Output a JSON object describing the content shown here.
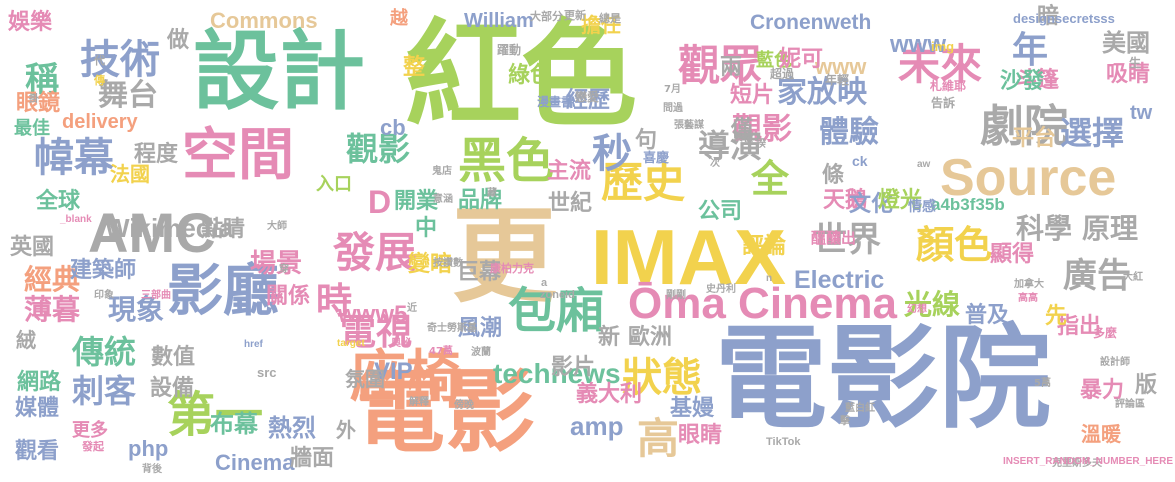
{
  "palette": {
    "pink": "#e58bb5",
    "green": "#6cc19c",
    "lime": "#a7d25c",
    "gray": "#a9a9a9",
    "slate": "#8da0cb",
    "orange": "#f4a07e",
    "tan": "#e6c898",
    "yellow": "#f2d24d",
    "pink_light": "#f6b7cf"
  },
  "words": [
    {
      "text": "電影院",
      "color": "#8da0cb"
    },
    {
      "text": "紅色",
      "color": "#a7d25c"
    },
    {
      "text": "設計",
      "color": "#6cc19c"
    },
    {
      "text": "電影",
      "color": "#f4a07e"
    },
    {
      "text": "更",
      "color": "#e6c898"
    },
    {
      "text": "IMAX",
      "color": "#f2d24d"
    },
    {
      "text": "AMC",
      "color": "#a9a9a9"
    },
    {
      "text": "座椅",
      "color": "#f4a07e"
    },
    {
      "text": "空間",
      "color": "#e58bb5"
    },
    {
      "text": "影廳",
      "color": "#8da0cb"
    },
    {
      "text": "Source",
      "color": "#e6c898"
    },
    {
      "text": "Ōma Cinema",
      "color": "#e58bb5"
    },
    {
      "text": "黑色",
      "color": "#a7d25c"
    },
    {
      "text": "包廂",
      "color": "#6cc19c"
    },
    {
      "text": "劇院",
      "color": "#a9a9a9"
    },
    {
      "text": "未來",
      "color": "#e58bb5"
    },
    {
      "text": "觀眾",
      "color": "#e58bb5"
    },
    {
      "text": "第一",
      "color": "#a7d25c"
    },
    {
      "text": "歷史",
      "color": "#f2d24d"
    },
    {
      "text": "發展",
      "color": "#e58bb5"
    },
    {
      "text": "技術",
      "color": "#8da0cb"
    },
    {
      "text": "幃幕",
      "color": "#8da0cb"
    },
    {
      "text": "狀態",
      "color": "#f2d24d"
    },
    {
      "text": "高",
      "color": "#e6c898"
    },
    {
      "text": "觀影",
      "color": "#6cc19c"
    },
    {
      "text": "觀影",
      "color": "#e58bb5"
    },
    {
      "text": "體驗",
      "color": "#8da0cb"
    },
    {
      "text": "選擇",
      "color": "#8da0cb"
    },
    {
      "text": "顏色",
      "color": "#f2d24d"
    },
    {
      "text": "廣告",
      "color": "#a9a9a9"
    },
    {
      "text": "世界",
      "color": "#a9a9a9"
    },
    {
      "text": "導演",
      "color": "#a9a9a9"
    },
    {
      "text": "全",
      "color": "#a7d25c"
    },
    {
      "text": "秒",
      "color": "#8da0cb"
    },
    {
      "text": "年",
      "color": "#8da0cb"
    },
    {
      "text": "家放映",
      "color": "#8da0cb"
    },
    {
      "text": "舞台",
      "color": "#a9a9a9"
    },
    {
      "text": "電視",
      "color": "#e58bb5"
    },
    {
      "text": "時",
      "color": "#e58bb5"
    },
    {
      "text": "傳統",
      "color": "#6cc19c"
    },
    {
      "text": "刺客",
      "color": "#8da0cb"
    },
    {
      "text": "經典",
      "color": "#f4a07e"
    },
    {
      "text": "光線",
      "color": "#a7d25c"
    },
    {
      "text": "稱",
      "color": "#6cc19c"
    },
    {
      "text": "D",
      "color": "#e58bb5"
    },
    {
      "text": "Wikimedia",
      "color": "#a9a9a9"
    },
    {
      "text": "Commons",
      "color": "#e6c898"
    },
    {
      "text": "Cronenweth",
      "color": "#8da0cb"
    },
    {
      "text": "technews",
      "color": "#6cc19c"
    },
    {
      "text": "Electric",
      "color": "#8da0cb"
    },
    {
      "text": "Cinema",
      "color": "#8da0cb"
    },
    {
      "text": "delivery",
      "color": "#f4a07e"
    },
    {
      "text": "William",
      "color": "#8da0cb"
    },
    {
      "text": "www5",
      "color": "#e58bb5"
    },
    {
      "text": "www",
      "color": "#8da0cb"
    },
    {
      "text": "www",
      "color": "#e6c898"
    },
    {
      "text": "VIP",
      "color": "#8da0cb"
    },
    {
      "text": "amp",
      "color": "#8da0cb"
    },
    {
      "text": "php",
      "color": "#8da0cb"
    },
    {
      "text": "tw",
      "color": "#8da0cb"
    },
    {
      "text": "cb",
      "color": "#8da0cb"
    },
    {
      "text": "a4b3f35b",
      "color": "#6cc19c"
    },
    {
      "text": "科學",
      "color": "#a9a9a9"
    },
    {
      "text": "原理",
      "color": "#a9a9a9"
    },
    {
      "text": "美國",
      "color": "#a9a9a9"
    },
    {
      "text": "英國",
      "color": "#a9a9a9"
    },
    {
      "text": "現象",
      "color": "#8da0cb"
    },
    {
      "text": "薄暮",
      "color": "#e58bb5"
    },
    {
      "text": "場景",
      "color": "#e58bb5"
    },
    {
      "text": "關係",
      "color": "#e58bb5"
    },
    {
      "text": "建築師",
      "color": "#8da0cb"
    },
    {
      "text": "點睛",
      "color": "#a9a9a9"
    },
    {
      "text": "布幕",
      "color": "#6cc19c"
    },
    {
      "text": "熱烈",
      "color": "#8da0cb"
    },
    {
      "text": "設備",
      "color": "#a9a9a9"
    },
    {
      "text": "數值",
      "color": "#a9a9a9"
    },
    {
      "text": "網路",
      "color": "#6cc19c"
    },
    {
      "text": "媒體",
      "color": "#8da0cb"
    },
    {
      "text": "觀看",
      "color": "#8da0cb"
    },
    {
      "text": "更多",
      "color": "#e58bb5"
    },
    {
      "text": "娛樂",
      "color": "#e58bb5"
    },
    {
      "text": "眼鏡",
      "color": "#f4a07e"
    },
    {
      "text": "最佳",
      "color": "#6cc19c"
    },
    {
      "text": "法國",
      "color": "#f2d24d"
    },
    {
      "text": "程度",
      "color": "#a9a9a9"
    },
    {
      "text": "全球",
      "color": "#6cc19c"
    },
    {
      "text": "入口",
      "color": "#a7d25c"
    },
    {
      "text": "開業",
      "color": "#6cc19c"
    },
    {
      "text": "品牌",
      "color": "#6cc19c"
    },
    {
      "text": "世紀",
      "color": "#a9a9a9"
    },
    {
      "text": "中",
      "color": "#6cc19c"
    },
    {
      "text": "主流",
      "color": "#e58bb5"
    },
    {
      "text": "公司",
      "color": "#6cc19c"
    },
    {
      "text": "條",
      "color": "#a9a9a9"
    },
    {
      "text": "天鵝",
      "color": "#e58bb5"
    },
    {
      "text": "文化",
      "color": "#8da0cb"
    },
    {
      "text": "燈光",
      "color": "#a7d25c"
    },
    {
      "text": "評論",
      "color": "#f2d24d"
    },
    {
      "text": "顯得",
      "color": "#e58bb5"
    },
    {
      "text": "變暗",
      "color": "#f2d24d"
    },
    {
      "text": "巨幕",
      "color": "#a9a9a9"
    },
    {
      "text": "風潮",
      "color": "#8da0cb"
    },
    {
      "text": "新",
      "color": "#a9a9a9"
    },
    {
      "text": "歐洲",
      "color": "#a9a9a9"
    },
    {
      "text": "影片",
      "color": "#a9a9a9"
    },
    {
      "text": "義大利",
      "color": "#e58bb5"
    },
    {
      "text": "基嫚",
      "color": "#8da0cb"
    },
    {
      "text": "眼睛",
      "color": "#e58bb5"
    },
    {
      "text": "普及",
      "color": "#8da0cb"
    },
    {
      "text": "指出",
      "color": "#e58bb5"
    },
    {
      "text": "先",
      "color": "#f2d24d"
    },
    {
      "text": "版",
      "color": "#a9a9a9"
    },
    {
      "text": "暴力",
      "color": "#e58bb5"
    },
    {
      "text": "溫暖",
      "color": "#f4a07e"
    },
    {
      "text": "牆面",
      "color": "#a9a9a9"
    },
    {
      "text": "外",
      "color": "#a9a9a9"
    },
    {
      "text": "氛圍",
      "color": "#a9a9a9"
    },
    {
      "text": "擔任",
      "color": "#f2d24d"
    },
    {
      "text": "綠色",
      "color": "#a7d25c"
    },
    {
      "text": "經歷",
      "color": "#8da0cb"
    },
    {
      "text": "藍色",
      "color": "#a7d25c"
    },
    {
      "text": "妮可",
      "color": "#e58bb5"
    },
    {
      "text": "兩",
      "color": "#a9a9a9"
    },
    {
      "text": "短片",
      "color": "#e58bb5"
    },
    {
      "text": "僅",
      "color": "#a9a9a9"
    },
    {
      "text": "句",
      "color": "#a9a9a9"
    },
    {
      "text": "暗",
      "color": "#a9a9a9"
    },
    {
      "text": "吸睛",
      "color": "#e58bb5"
    },
    {
      "text": "斗篷",
      "color": "#e58bb5"
    },
    {
      "text": "平台",
      "color": "#e6c898"
    },
    {
      "text": "沙發",
      "color": "#6cc19c"
    },
    {
      "text": "越",
      "color": "#f4a07e"
    },
    {
      "text": "做",
      "color": "#a9a9a9"
    },
    {
      "text": "整",
      "color": "#f2d24d"
    },
    {
      "text": "絨",
      "color": "#a9a9a9"
    },
    {
      "text": "ck",
      "color": "#8da0cb"
    },
    {
      "text": "designsecretsss",
      "color": "#8da0cb"
    },
    {
      "text": "img",
      "color": "#f2d24d"
    },
    {
      "text": "醞釀出",
      "color": "#e58bb5"
    },
    {
      "text": "情感",
      "color": "#8da0cb"
    },
    {
      "text": "喜慶",
      "color": "#8da0cb"
    },
    {
      "text": "漫畫書",
      "color": "#8da0cb"
    },
    {
      "text": "戀愛",
      "color": "#a9a9a9"
    },
    {
      "text": "超過",
      "color": "#a9a9a9"
    },
    {
      "text": "年輕",
      "color": "#a9a9a9"
    },
    {
      "text": "札維耶",
      "color": "#e58bb5"
    },
    {
      "text": "告訴",
      "color": "#a9a9a9"
    },
    {
      "text": "生",
      "color": "#a9a9a9"
    },
    {
      "text": "更新",
      "color": "#a9a9a9"
    },
    {
      "text": "總是",
      "color": "#a9a9a9"
    },
    {
      "text": "大部分",
      "color": "#a9a9a9"
    },
    {
      "text": "躍動",
      "color": "#a9a9a9"
    },
    {
      "text": "7月",
      "color": "#a9a9a9"
    },
    {
      "text": "問過",
      "color": "#a9a9a9"
    },
    {
      "text": "張藝謀",
      "color": "#a9a9a9"
    },
    {
      "text": "累積",
      "color": "#a9a9a9"
    },
    {
      "text": "次",
      "color": "#a9a9a9"
    },
    {
      "text": "揆",
      "color": "#a9a9a9"
    },
    {
      "text": "鬼店",
      "color": "#a9a9a9"
    },
    {
      "text": "意涵",
      "color": "#a9a9a9"
    },
    {
      "text": "藏",
      "color": "#a9a9a9"
    },
    {
      "text": "aw",
      "color": "#a9a9a9"
    },
    {
      "text": "_blank",
      "color": "#e58bb5"
    },
    {
      "text": "大師",
      "color": "#a9a9a9"
    },
    {
      "text": "穿",
      "color": "#a9a9a9"
    },
    {
      "text": "印象",
      "color": "#a9a9a9"
    },
    {
      "text": "三部曲",
      "color": "#e58bb5"
    },
    {
      "text": "按讚數",
      "color": "#a9a9a9"
    },
    {
      "text": "康柏力克",
      "color": "#e58bb5"
    },
    {
      "text": "a",
      "color": "#a9a9a9"
    },
    {
      "text": "zoneid",
      "color": "#a9a9a9"
    },
    {
      "text": "奇士勞斯基",
      "color": "#a9a9a9"
    },
    {
      "text": "近",
      "color": "#a9a9a9"
    },
    {
      "text": "奧秘",
      "color": "#e58bb5"
    },
    {
      "text": "href",
      "color": "#8da0cb"
    },
    {
      "text": "src",
      "color": "#a9a9a9"
    },
    {
      "text": "target",
      "color": "#f2d24d"
    },
    {
      "text": "47萬",
      "color": "#e58bb5"
    },
    {
      "text": "波蘭",
      "color": "#a9a9a9"
    },
    {
      "text": "解釋",
      "color": "#a9a9a9"
    },
    {
      "text": "傍晚",
      "color": "#a9a9a9"
    },
    {
      "text": "剛剛",
      "color": "#a9a9a9"
    },
    {
      "text": "史丹利",
      "color": "#a9a9a9"
    },
    {
      "text": "加拿大",
      "color": "#a9a9a9"
    },
    {
      "text": "高高",
      "color": "#e58bb5"
    },
    {
      "text": "大紅",
      "color": "#a9a9a9"
    },
    {
      "text": "n",
      "color": "#a9a9a9"
    },
    {
      "text": "幻想",
      "color": "#e58bb5"
    },
    {
      "text": "多麼",
      "color": "#e58bb5"
    },
    {
      "text": "設計師",
      "color": "#a9a9a9"
    },
    {
      "text": "5萬",
      "color": "#a9a9a9"
    },
    {
      "text": "藍白紅",
      "color": "#a9a9a9"
    },
    {
      "text": "擊",
      "color": "#a9a9a9"
    },
    {
      "text": "評論區",
      "color": "#a9a9a9"
    },
    {
      "text": "克里斯多夫",
      "color": "#a9a9a9"
    },
    {
      "text": "INSERT_RANDOM_NUMBER_HERE",
      "color": "#e58bb5"
    },
    {
      "text": "TikTok",
      "color": "#a9a9a9"
    },
    {
      "text": "背後",
      "color": "#a9a9a9"
    },
    {
      "text": "掛",
      "color": "#a9a9a9"
    },
    {
      "text": "傳",
      "color": "#f2d24d"
    },
    {
      "text": "代",
      "color": "#a9a9a9"
    },
    {
      "text": "發起",
      "color": "#e58bb5"
    }
  ]
}
